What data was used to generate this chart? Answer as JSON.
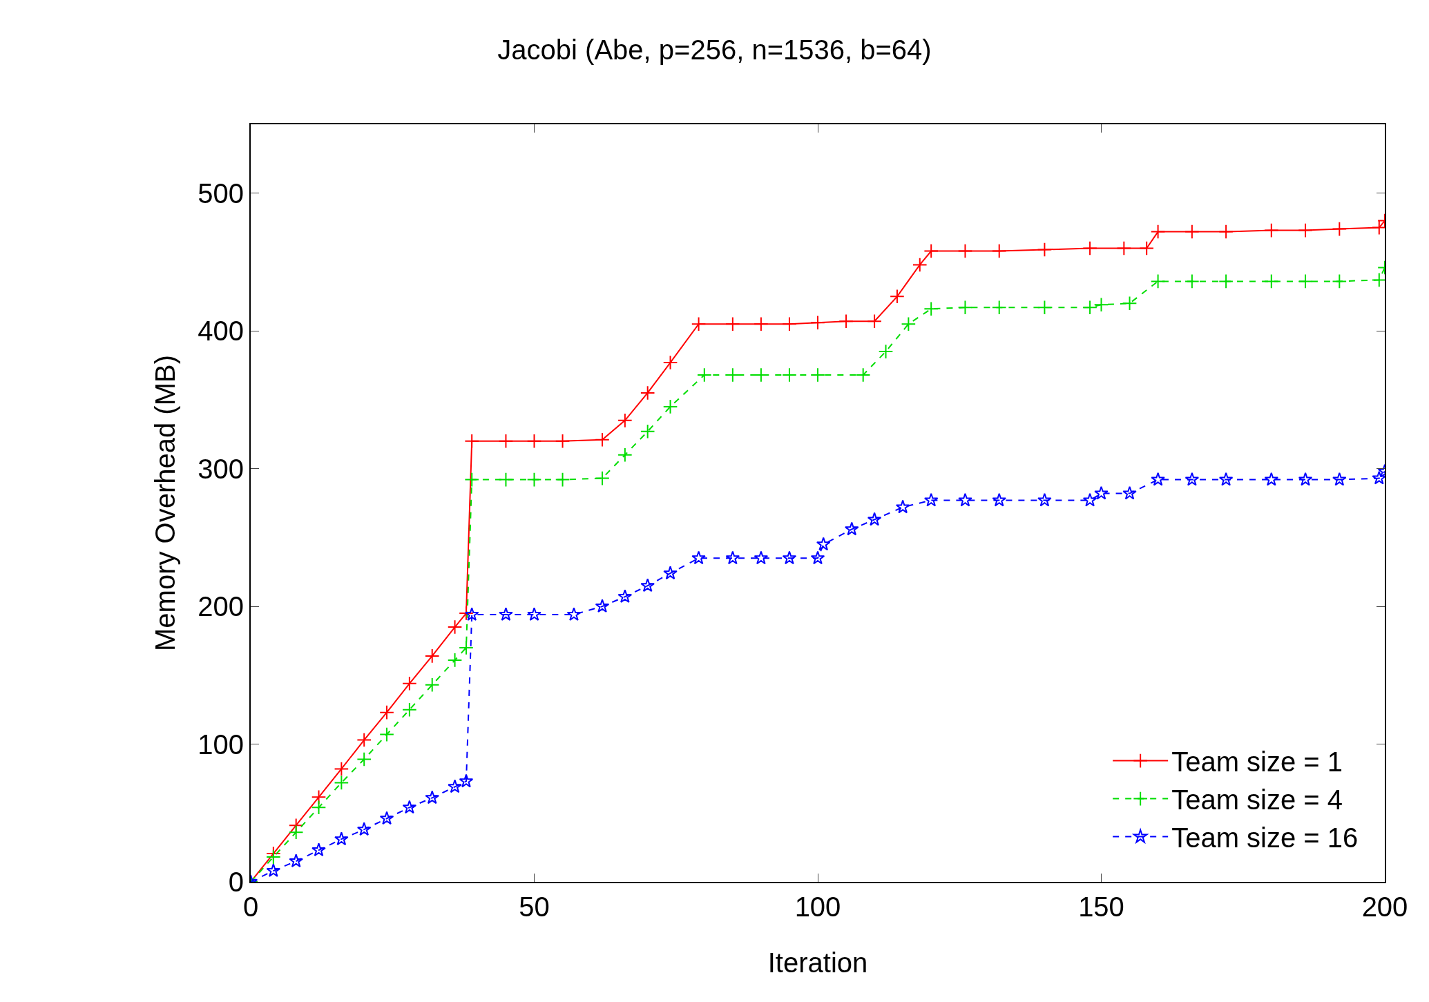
{
  "chart_data": {
    "type": "line",
    "title": "Jacobi (Abe, p=256, n=1536, b=64)",
    "xlabel": "Iteration",
    "ylabel": "Memory Overhead (MB)",
    "xlim": [
      0,
      200
    ],
    "xticks": [
      0,
      50,
      100,
      150,
      200
    ],
    "ylim": [
      0,
      550
    ],
    "yticks": [
      0,
      100,
      200,
      300,
      400,
      500
    ],
    "grid": false,
    "legend": "bottom right",
    "series": [
      {
        "name": "Team size = 1",
        "color": "#ff0000",
        "line_style": "solid",
        "marker": "cross",
        "x": [
          0,
          4,
          8,
          12,
          16,
          20,
          24,
          28,
          32,
          36,
          38,
          39,
          45,
          50,
          55,
          62,
          66,
          70,
          74,
          79,
          85,
          90,
          95,
          100,
          105,
          110,
          114,
          118,
          120,
          126,
          132,
          140,
          148,
          154,
          158,
          160,
          166,
          172,
          180,
          186,
          192,
          199,
          200
        ],
        "values": [
          0,
          20.5,
          41,
          61.5,
          82,
          103,
          123,
          144,
          164,
          185,
          195,
          320,
          320,
          320,
          320,
          321,
          335,
          355,
          377,
          405,
          405,
          405,
          405,
          406,
          407,
          407,
          425,
          448,
          458,
          458,
          458,
          459,
          460,
          460,
          460,
          472,
          472,
          472,
          473,
          473,
          474,
          475,
          480
        ]
      },
      {
        "name": "Team size = 4",
        "color": "#00dd00",
        "line_style": "dashed",
        "marker": "cross",
        "x": [
          0,
          4,
          8,
          12,
          16,
          20,
          24,
          28,
          32,
          36,
          38,
          39,
          45,
          50,
          55,
          62,
          66,
          70,
          74,
          80,
          85,
          90,
          95,
          100,
          108,
          112,
          116,
          120,
          126,
          132,
          140,
          148,
          150,
          155,
          160,
          166,
          172,
          180,
          186,
          192,
          199,
          200
        ],
        "values": [
          0,
          18,
          36,
          54,
          72,
          89,
          107,
          125,
          143,
          161,
          170,
          292,
          292,
          292,
          292,
          293,
          310,
          327,
          345,
          368,
          368,
          368,
          368,
          368,
          368,
          385,
          405,
          416,
          417,
          417,
          417,
          417,
          419,
          420,
          436,
          436,
          436,
          436,
          436,
          436,
          437,
          446
        ]
      },
      {
        "name": "Team size = 16",
        "color": "#0000ff",
        "line_style": "dashed",
        "marker": "star",
        "x": [
          0,
          4,
          8,
          12,
          16,
          20,
          24,
          28,
          32,
          36,
          38,
          39,
          45,
          50,
          57,
          62,
          66,
          70,
          74,
          79,
          85,
          90,
          95,
          100,
          101,
          106,
          110,
          115,
          120,
          126,
          132,
          140,
          148,
          150,
          155,
          160,
          166,
          172,
          180,
          186,
          192,
          199,
          200
        ],
        "values": [
          0,
          8,
          15,
          23,
          31,
          38,
          46,
          54,
          61,
          69,
          73,
          194,
          194,
          194,
          194,
          200,
          207,
          215,
          224,
          235,
          235,
          235,
          235,
          235,
          245,
          256,
          263,
          272,
          277,
          277,
          277,
          277,
          277,
          282,
          282,
          292,
          292,
          292,
          292,
          292,
          292,
          293,
          298
        ]
      }
    ]
  }
}
